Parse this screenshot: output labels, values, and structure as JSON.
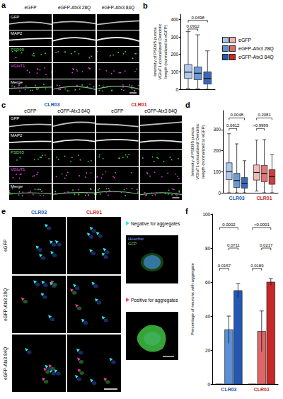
{
  "figure": {
    "a": {
      "letter": "a",
      "columns": [
        "eGFP",
        "eGFP-Atx3 28Q",
        "eGFP-Atx3 84Q"
      ],
      "rows": [
        "GFP",
        "MAP2",
        "PSD95",
        "VGluT1",
        "Merge"
      ]
    },
    "c": {
      "letter": "c",
      "groups": [
        {
          "name": "CLR03",
          "columns": [
            "eGFP",
            "eGFP-Atx3 84Q"
          ]
        },
        {
          "name": "CLR01",
          "columns": [
            "eGFP",
            "eGFP-Atx3 84Q"
          ]
        }
      ],
      "rows": [
        "GFP",
        "MAP2",
        "PSD95",
        "VGluT1",
        "Merge"
      ]
    },
    "e": {
      "letter": "e",
      "columns": [
        "CLR03",
        "CLR01"
      ],
      "rows": [
        "eGFP",
        "eGFP-Atx3 28Q",
        "eGFP-Atx3 84Q"
      ],
      "insets": [
        {
          "label": "Negative for aggregates",
          "channels": [
            "Hoechst",
            "GFP"
          ]
        },
        {
          "label": "Positive for aggregates"
        }
      ]
    }
  },
  "chart_data": [
    {
      "panel": "b",
      "type": "boxplot",
      "ylabel": "Intensity of PSD95 puncta VGluT1-colocalized/ Dendritic length (normalized to eGFP)",
      "categories": [
        null
      ],
      "series": [
        {
          "name": "eGFP",
          "color": "#a9c4ea",
          "values": [
            [
              5,
              62,
              98,
              142,
              330
            ]
          ]
        },
        {
          "name": "eGFP-Atx3 28Q",
          "color": "#5b8fd6",
          "values": [
            [
              3,
              55,
              92,
              128,
              312
            ]
          ]
        },
        {
          "name": "eGFP-Atx3 84Q",
          "color": "#2458b3",
          "values": [
            [
              0,
              30,
              62,
              100,
              220
            ]
          ]
        }
      ],
      "ylim": [
        0,
        430
      ],
      "yticks": [
        0,
        100,
        200,
        300,
        400
      ],
      "grid": false,
      "legend": "right",
      "tick_labels": "y",
      "comparisons": [
        {
          "from": [
            null,
            "eGFP"
          ],
          "to": [
            null,
            "eGFP-Atx3 28Q"
          ],
          "y": 345,
          "label": "0.0912"
        },
        {
          "from": [
            null,
            "eGFP"
          ],
          "to": [
            null,
            "eGFP-Atx3 84Q"
          ],
          "y": 395,
          "label": "0.0498"
        }
      ]
    },
    {
      "panel": "d",
      "type": "boxplot",
      "ylabel": "Intensity of PSD95 puncta VGluT1-colocalized/ Dendritic length (normalized to eGFP)",
      "categories": [
        "CLR03",
        "CLR01"
      ],
      "series": [
        {
          "name": "eGFP",
          "colors": [
            "#a9c4ea",
            "#f2b1b1"
          ],
          "values": [
            [
              0,
              62,
              100,
              142,
              280
            ],
            [
              8,
              60,
              96,
              132,
              250
            ]
          ]
        },
        {
          "name": "eGFP-Atx3 28Q",
          "colors": [
            "#5b8fd6",
            "#e06666"
          ],
          "values": [
            [
              0,
              25,
              58,
              92,
              232
            ],
            [
              0,
              52,
              92,
              130,
              252
            ]
          ]
        },
        {
          "name": "eGFP-Atx3 84Q",
          "colors": [
            "#2458b3",
            "#c62828"
          ],
          "values": [
            [
              0,
              22,
              45,
              72,
              152
            ],
            [
              0,
              40,
              76,
              110,
              182
            ]
          ]
        }
      ],
      "ylim": [
        0,
        390
      ],
      "yticks": [
        0,
        100,
        200,
        300
      ],
      "grid": false,
      "comparisons": [
        {
          "from": [
            "CLR03",
            "eGFP"
          ],
          "to": [
            "CLR03",
            "eGFP-Atx3 28Q"
          ],
          "y": 305,
          "label": "0.0612"
        },
        {
          "from": [
            "CLR03",
            "eGFP"
          ],
          "to": [
            "CLR03",
            "eGFP-Atx3 84Q"
          ],
          "y": 355,
          "label": "0.0048"
        },
        {
          "from": [
            "CLR01",
            "eGFP"
          ],
          "to": [
            "CLR01",
            "eGFP-Atx3 28Q"
          ],
          "y": 305,
          "label": ">0.9999"
        },
        {
          "from": [
            "CLR01",
            "eGFP"
          ],
          "to": [
            "CLR01",
            "eGFP-Atx3 84Q"
          ],
          "y": 355,
          "label": "0.2081"
        }
      ]
    },
    {
      "panel": "f",
      "type": "bar",
      "ylabel": "Percentage of neurons with aggregate",
      "categories": [
        "CLR03",
        "CLR01"
      ],
      "series": [
        {
          "name": "eGFP",
          "colors": [
            "#a9c4ea",
            "#f2b1b1"
          ],
          "values": [
            0,
            0
          ],
          "errors": [
            0,
            0
          ]
        },
        {
          "name": "eGFP-Atx3 28Q",
          "colors": [
            "#5b8fd6",
            "#e06666"
          ],
          "values": [
            32,
            31
          ],
          "errors": [
            8,
            12
          ]
        },
        {
          "name": "eGFP-Atx3 84Q",
          "colors": [
            "#2458b3",
            "#c62828"
          ],
          "values": [
            55,
            60
          ],
          "errors": [
            4,
            2
          ]
        }
      ],
      "ylim": [
        0,
        100
      ],
      "yticks": [
        0,
        20,
        40,
        60,
        80,
        100
      ],
      "grid": false,
      "comparisons": [
        {
          "from": [
            "CLR03",
            "eGFP"
          ],
          "to": [
            "CLR03",
            "eGFP-Atx3 28Q"
          ],
          "y": 68,
          "label": "0.0157"
        },
        {
          "from": [
            "CLR03",
            "eGFP-Atx3 28Q"
          ],
          "to": [
            "CLR03",
            "eGFP-Atx3 84Q"
          ],
          "y": 80,
          "label": "0.0711"
        },
        {
          "from": [
            "CLR03",
            "eGFP"
          ],
          "to": [
            "CLR03",
            "eGFP-Atx3 84Q"
          ],
          "y": 92,
          "label": "0.0002"
        },
        {
          "from": [
            "CLR01",
            "eGFP"
          ],
          "to": [
            "CLR01",
            "eGFP-Atx3 28Q"
          ],
          "y": 68,
          "label": "0.0189"
        },
        {
          "from": [
            "CLR01",
            "eGFP-Atx3 28Q"
          ],
          "to": [
            "CLR01",
            "eGFP-Atx3 84Q"
          ],
          "y": 80,
          "label": "0.0217"
        },
        {
          "from": [
            "CLR01",
            "eGFP"
          ],
          "to": [
            "CLR01",
            "eGFP-Atx3 84Q"
          ],
          "y": 92,
          "label": "<0.0001"
        }
      ]
    }
  ]
}
